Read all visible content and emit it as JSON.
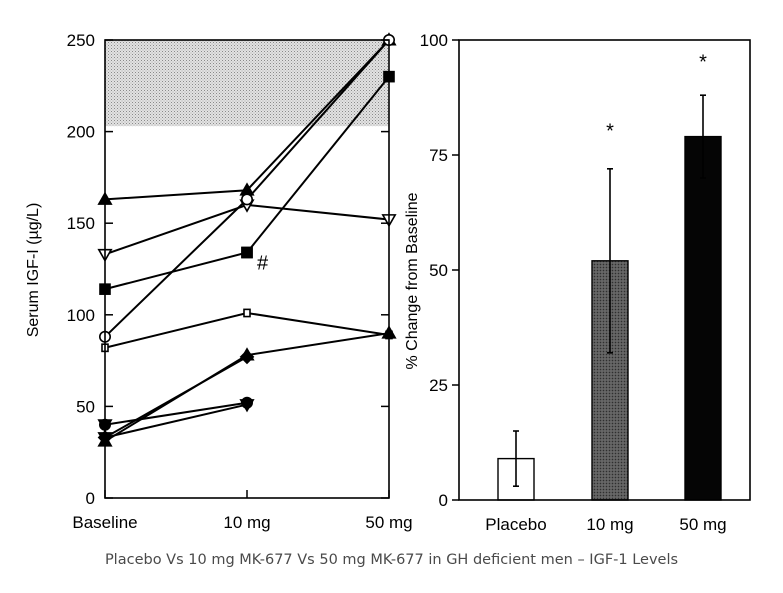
{
  "caption": "Placebo Vs 10 mg MK-677 Vs 50 mg MK-677 in GH deficient men – IGF-1 Levels",
  "chart_data": [
    {
      "type": "line",
      "ylabel": "Serum IGF-I (µg/L)",
      "x": [
        "Baseline",
        "10 mg",
        "50 mg"
      ],
      "ylim": [
        0,
        250
      ],
      "yticks": [
        0,
        50,
        100,
        150,
        200,
        250
      ],
      "shaded_band": [
        203,
        250
      ],
      "series": [
        {
          "marker": "triangle-up-filled",
          "values": [
            163,
            168,
            250
          ]
        },
        {
          "marker": "square-filled",
          "values": [
            114,
            134,
            null
          ]
        },
        {
          "marker": "square-filled",
          "values": [
            null,
            134,
            230
          ]
        },
        {
          "marker": "triangle-down-open",
          "values": [
            133,
            160,
            152
          ]
        },
        {
          "marker": "circle-open",
          "values": [
            88,
            163,
            250
          ]
        },
        {
          "marker": "square-open",
          "values": [
            82,
            101,
            89
          ]
        },
        {
          "marker": "triangle-up-filled",
          "values": [
            31,
            78,
            90
          ]
        },
        {
          "marker": "diamond-filled",
          "values": [
            33,
            77,
            null
          ]
        },
        {
          "marker": "triangle-down-filled",
          "values": [
            40,
            null,
            null
          ]
        },
        {
          "marker": "triangle-down-filled",
          "values": [
            33,
            51,
            null
          ]
        },
        {
          "marker": "circle-filled",
          "values": [
            40,
            52,
            null
          ]
        }
      ],
      "annotations": [
        {
          "text": "#",
          "x": "10 mg",
          "y": 128
        }
      ]
    },
    {
      "type": "bar",
      "ylabel": "% Change from Baseline",
      "categories": [
        "Placebo",
        "10 mg",
        "50 mg"
      ],
      "values": [
        9,
        52,
        79
      ],
      "errors": [
        6,
        20,
        9
      ],
      "fills": [
        "#ffffff",
        "#555555",
        "#050505"
      ],
      "ylim": [
        0,
        100
      ],
      "yticks": [
        0,
        25,
        50,
        75,
        100
      ],
      "annotations": [
        {
          "text": "*",
          "category": "10 mg",
          "y": 81
        },
        {
          "text": "*",
          "category": "50 mg",
          "y": 96
        }
      ]
    }
  ]
}
